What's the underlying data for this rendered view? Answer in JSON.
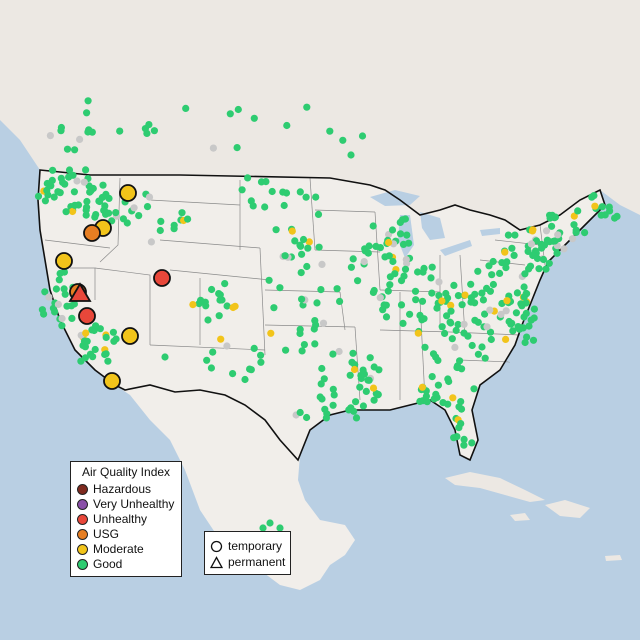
{
  "legend": {
    "title": "Air Quality Index",
    "items": [
      {
        "label": "Hazardous",
        "color": "#7e2a1e"
      },
      {
        "label": "Very Unhealthy",
        "color": "#8a4fa8"
      },
      {
        "label": "Unhealthy",
        "color": "#e8473a"
      },
      {
        "label": "USG",
        "color": "#e67e22"
      },
      {
        "label": "Moderate",
        "color": "#f2c41a"
      },
      {
        "label": "Good",
        "color": "#2ecc71"
      }
    ]
  },
  "monitor_legend": {
    "items": [
      {
        "label": "temporary",
        "symbol": "circle"
      },
      {
        "label": "permanent",
        "symbol": "triangle"
      }
    ]
  },
  "colors": {
    "water": "#b9cfe3",
    "land": "#ece8e3",
    "us_land": "#f1eeea",
    "border": "#111111",
    "state_lines": "#8a8a8a",
    "no_data": "#c8c8c8"
  },
  "major_sites": [
    {
      "category": "Moderate",
      "type": "temporary"
    },
    {
      "category": "Moderate",
      "type": "temporary"
    },
    {
      "category": "USG",
      "type": "temporary"
    },
    {
      "category": "Moderate",
      "type": "temporary"
    },
    {
      "category": "Unhealthy",
      "type": "temporary"
    },
    {
      "category": "USG",
      "type": "temporary"
    },
    {
      "category": "Unhealthy",
      "type": "permanent"
    },
    {
      "category": "Unhealthy",
      "type": "temporary"
    },
    {
      "category": "Moderate",
      "type": "temporary"
    },
    {
      "category": "Moderate",
      "type": "temporary"
    }
  ]
}
